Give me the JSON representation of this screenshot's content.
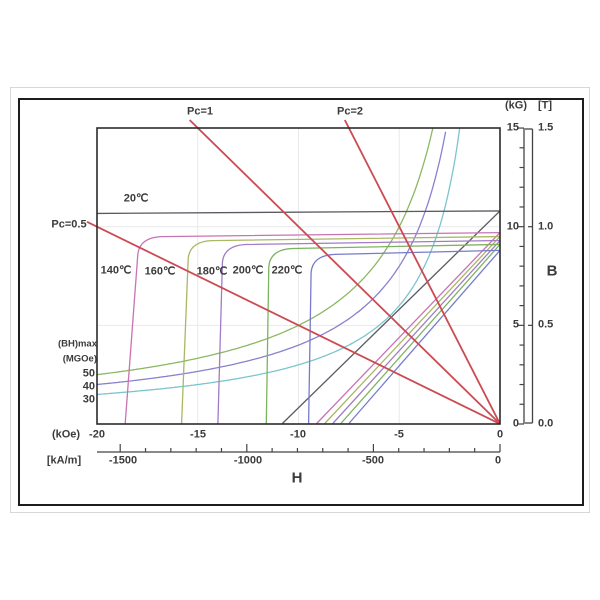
{
  "figure": {
    "type_note": "Permanent magnet demagnetization curve family (2nd quadrant B-H plot)",
    "axis_titles": {
      "x": "H",
      "y": "B"
    },
    "units": {
      "x_primary": "(kOe)",
      "x_secondary": "[kA/m]",
      "y_primary": "(kG)",
      "y_secondary": "[T]"
    }
  },
  "chart_data": {
    "type": "line",
    "title": "",
    "xlabel": "H",
    "ylabel": "B",
    "x_axis": {
      "unit_primary": "(kOe)",
      "ticks_primary": [
        -20,
        -15,
        -10,
        -5,
        0
      ],
      "unit_secondary": "[kA/m]",
      "ticks_secondary": [
        -1500,
        -1000,
        -500,
        0
      ],
      "range_kOe": [
        -20,
        0
      ]
    },
    "y_axis": {
      "unit_primary": "(kG)",
      "ticks_primary": [
        15,
        10,
        5,
        0
      ],
      "unit_secondary": "[T]",
      "ticks_secondary": [
        "1.5",
        "1.0",
        "0.5",
        "0.0"
      ],
      "range_kG": [
        0,
        15
      ]
    },
    "grid": "faint major gridlines",
    "load_lines": {
      "color": "#cc4a52",
      "items": [
        {
          "label": "Pc=0.5",
          "Pc": 0.5
        },
        {
          "label": "Pc=1",
          "Pc": 1
        },
        {
          "label": "Pc=2",
          "Pc": 2
        }
      ]
    },
    "bhmax_contours": {
      "heading_line1": "(BH)max",
      "heading_line2": "(MGOe)",
      "items": [
        {
          "MGOe": 50,
          "label": "50",
          "color": "#8cb863"
        },
        {
          "MGOe": 40,
          "label": "40",
          "color": "#8882cd"
        },
        {
          "MGOe": 30,
          "label": "30",
          "color": "#7cc5ce"
        }
      ]
    },
    "temperature_series": [
      {
        "label": "20℃",
        "color": "#5a5a63",
        "Br_kG": 10.8,
        "Hk_kOe": null,
        "Hci_kOe": null,
        "Hcb_kOe": -10.8,
        "flat": true
      },
      {
        "label": "140℃",
        "color": "#c873b4",
        "Br_kG": 9.7,
        "Hk_kOe": -17.9,
        "Hci_kOe": -18.6,
        "Hcb_kOe": -9.1,
        "flat": false
      },
      {
        "label": "160℃",
        "color": "#aab763",
        "Br_kG": 9.5,
        "Hk_kOe": -15.4,
        "Hci_kOe": -15.8,
        "Hcb_kOe": -8.7,
        "flat": false
      },
      {
        "label": "180℃",
        "color": "#a17cc4",
        "Br_kG": 9.3,
        "Hk_kOe": -13.7,
        "Hci_kOe": -14.0,
        "Hcb_kOe": -8.3,
        "flat": false
      },
      {
        "label": "200℃",
        "color": "#7cb35e",
        "Br_kG": 9.1,
        "Hk_kOe": -11.4,
        "Hci_kOe": -11.6,
        "Hcb_kOe": -7.9,
        "flat": false
      },
      {
        "label": "220℃",
        "color": "#767bcb",
        "Br_kG": 8.8,
        "Hk_kOe": -9.3,
        "Hci_kOe": -9.5,
        "Hcb_kOe": -7.5,
        "flat": false
      }
    ]
  }
}
